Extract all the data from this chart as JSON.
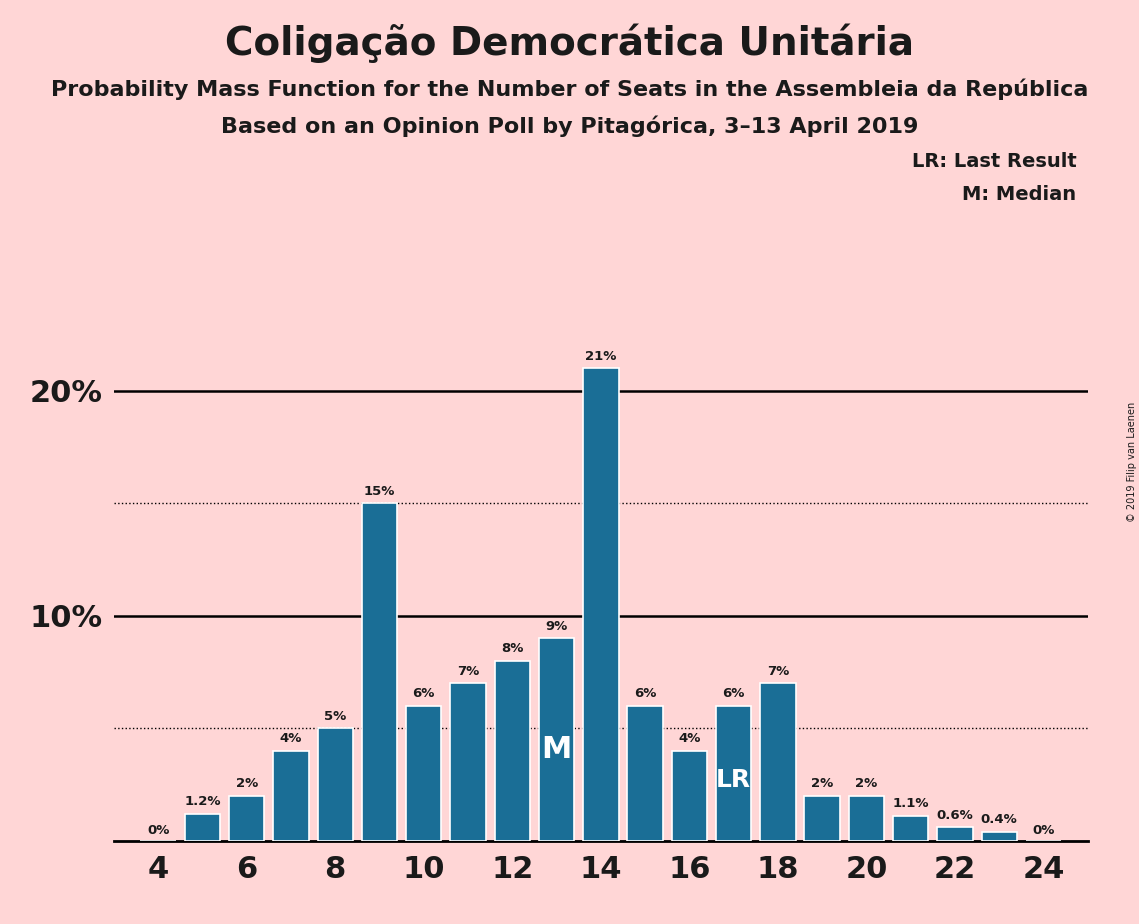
{
  "title": "Coligação Democrática Unitária",
  "subtitle1": "Probability Mass Function for the Number of Seats in the Assembleia da República",
  "subtitle2": "Based on an Opinion Poll by Pitagórica, 3–13 April 2019",
  "copyright": "© 2019 Filip van Laenen",
  "seats": [
    4,
    5,
    6,
    7,
    8,
    9,
    10,
    11,
    12,
    13,
    14,
    15,
    16,
    17,
    18,
    19,
    20,
    21,
    22,
    23,
    24
  ],
  "probabilities": [
    0.0,
    1.2,
    2.0,
    4.0,
    5.0,
    15.0,
    6.0,
    7.0,
    8.0,
    9.0,
    21.0,
    6.0,
    4.0,
    6.0,
    7.0,
    2.0,
    2.0,
    1.1,
    0.6,
    0.4,
    0.0
  ],
  "labels": [
    "0%",
    "1.2%",
    "2%",
    "4%",
    "5%",
    "15%",
    "6%",
    "7%",
    "8%",
    "9%",
    "21%",
    "6%",
    "4%",
    "6%",
    "7%",
    "2%",
    "2%",
    "1.1%",
    "0.6%",
    "0.4%",
    "0%"
  ],
  "bar_color": "#1a6e96",
  "background_color": "#ffd6d6",
  "text_color": "#1a1a1a",
  "median_seat": 13,
  "last_result_seat": 17,
  "dotted_lines": [
    5.0,
    15.0
  ],
  "solid_lines": [
    10.0,
    20.0
  ],
  "xlim": [
    3.0,
    25.0
  ],
  "ylim": [
    0,
    23
  ],
  "legend_lr": "LR: Last Result",
  "legend_m": "M: Median",
  "title_fontsize": 28,
  "subtitle_fontsize": 16,
  "axis_fontsize": 22
}
